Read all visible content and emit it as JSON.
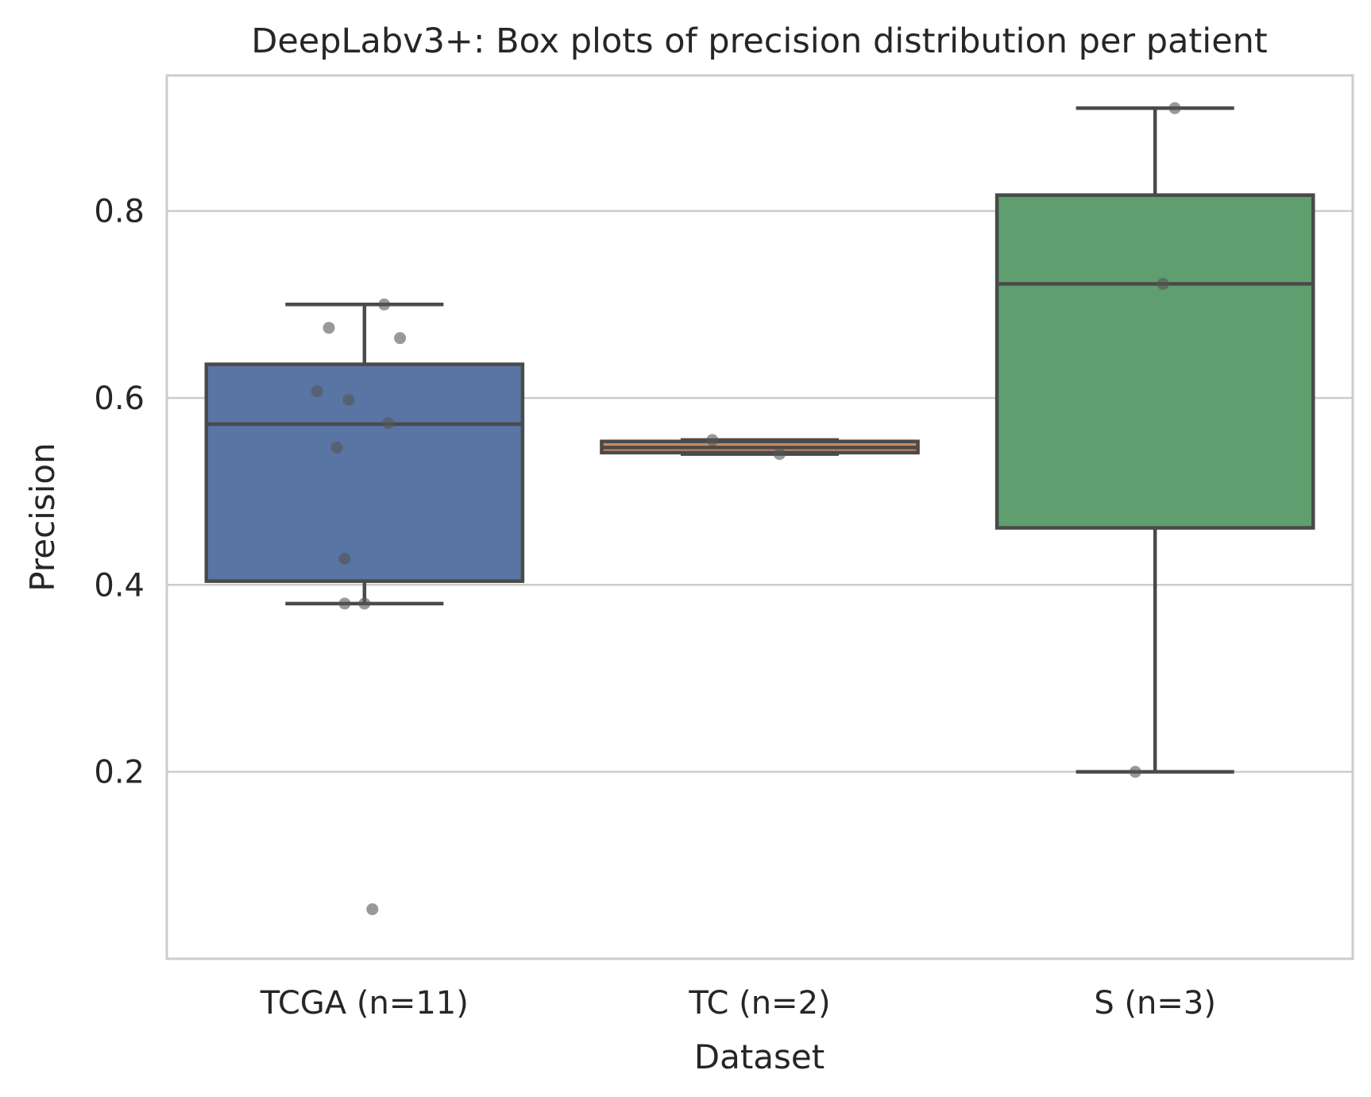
{
  "chart_data": {
    "type": "box",
    "title": "DeepLabv3+: Box plots of precision distribution per patient",
    "xlabel": "Dataset",
    "ylabel": "Precision",
    "ylim": [
      0.0,
      0.945
    ],
    "yticks": [
      0.2,
      0.4,
      0.6,
      0.8
    ],
    "ytick_labels": [
      "0.2",
      "0.4",
      "0.6",
      "0.8"
    ],
    "grid": "horizontal",
    "categories": [
      "TCGA (n=11)",
      "TC (n=2)",
      "S (n=3)"
    ],
    "box_colors": [
      "#5975a4",
      "#cc8963",
      "#5f9e6e"
    ],
    "edge_color": "#4a4a4a",
    "point_color": "#555555",
    "boxes": [
      {
        "category": "TCGA (n=11)",
        "whisker_low": 0.38,
        "q1": 0.404,
        "median": 0.572,
        "q3": 0.636,
        "whisker_high": 0.7
      },
      {
        "category": "TC (n=2)",
        "whisker_low": 0.54,
        "q1": 0.5415,
        "median": 0.547,
        "q3": 0.5535,
        "whisker_high": 0.555
      },
      {
        "category": "S (n=3)",
        "whisker_low": 0.2,
        "q1": 0.461,
        "median": 0.722,
        "q3": 0.817,
        "whisker_high": 0.91
      }
    ],
    "points": [
      [
        0.7,
        0.675,
        0.664,
        0.607,
        0.598,
        0.573,
        0.547,
        0.428,
        0.38,
        0.38,
        0.053
      ],
      [
        0.555,
        0.54
      ],
      [
        0.91,
        0.722,
        0.2
      ]
    ],
    "point_jitter": [
      [
        0.05,
        -0.09,
        0.09,
        -0.12,
        -0.04,
        0.06,
        -0.07,
        -0.05,
        -0.05,
        0.0,
        0.02
      ],
      [
        -0.12,
        0.05
      ],
      [
        0.05,
        0.02,
        -0.05
      ]
    ]
  }
}
